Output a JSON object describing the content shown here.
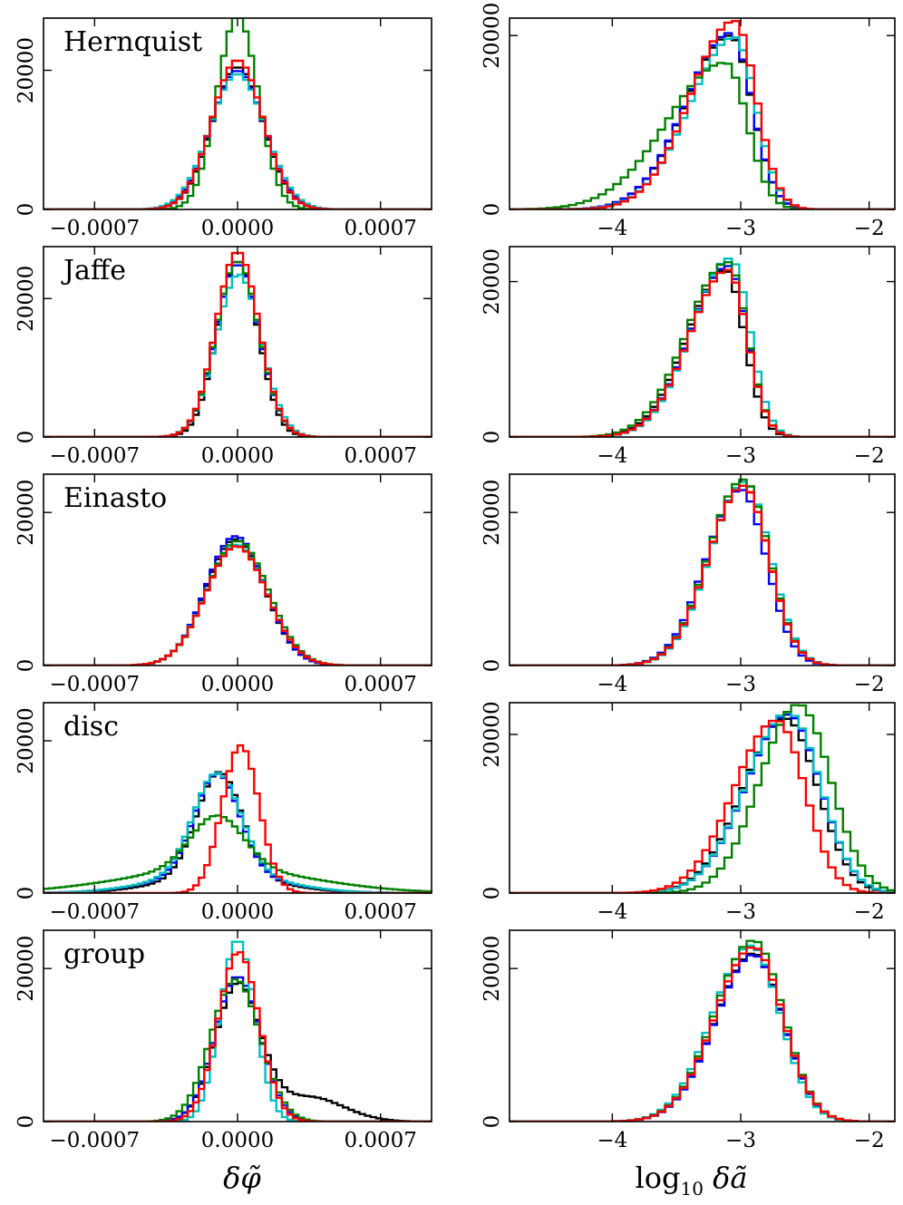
{
  "chart_data": {
    "type": "histogram-grid",
    "series": [
      {
        "name": "black",
        "color": "#000000"
      },
      {
        "name": "blue",
        "color": "#0000ff"
      },
      {
        "name": "cyan",
        "color": "#00bfbf"
      },
      {
        "name": "green",
        "color": "#008000"
      },
      {
        "name": "red",
        "color": "#ff0000"
      }
    ],
    "columns": [
      {
        "xlabel": "δφ̃",
        "xlim": [
          -0.00095,
          0.00095
        ],
        "xticks": [
          -0.0007,
          0.0,
          0.0007
        ],
        "xticklabels": [
          "−0.0007",
          "0.0000",
          "0.0007"
        ],
        "yticks": [
          0,
          20000
        ],
        "yticklabels": [
          "0",
          "20000"
        ]
      },
      {
        "xlabel": "log10 δã",
        "xlim": [
          -4.8,
          -1.8
        ],
        "xticks": [
          -4,
          -3,
          -2
        ],
        "xticklabels": [
          "−4",
          "−3",
          "−2"
        ],
        "yticks": [
          0,
          20000
        ],
        "yticklabels": [
          "0",
          "20000"
        ]
      }
    ],
    "rows": [
      {
        "label": "Hernquist",
        "phi": {
          "ymax": 27500,
          "curves": {
            "black": {
              "type": "sym",
              "center": 0.0,
              "width": 0.000125,
              "peak": 20500
            },
            "blue": {
              "type": "sym",
              "center": 0.0,
              "width": 0.00013,
              "peak": 20000
            },
            "cyan": {
              "type": "sym",
              "center": 0.0,
              "width": 0.000135,
              "peak": 19500
            },
            "green": {
              "type": "sym",
              "center": 0.0,
              "width": 0.0001,
              "peak": 27800
            },
            "red": {
              "type": "sym",
              "center": 0.0,
              "width": 0.000125,
              "peak": 21500
            }
          }
        },
        "acc": {
          "ymax": 22000,
          "curves": {
            "black": {
              "type": "skew",
              "center": -3.08,
              "left": 0.35,
              "right": 0.17,
              "peak": 20000
            },
            "blue": {
              "type": "skew",
              "center": -3.08,
              "left": 0.35,
              "right": 0.17,
              "peak": 20300
            },
            "cyan": {
              "type": "skew",
              "center": -3.05,
              "left": 0.35,
              "right": 0.17,
              "peak": 19800
            },
            "green": {
              "type": "skew",
              "center": -3.12,
              "left": 0.45,
              "right": 0.17,
              "peak": 16900
            },
            "red": {
              "type": "skew",
              "center": -3.05,
              "left": 0.34,
              "right": 0.17,
              "peak": 21700
            }
          }
        }
      },
      {
        "label": "Jaffe",
        "phi": {
          "ymax": 27500,
          "curves": {
            "black": {
              "type": "sym",
              "center": 0.0,
              "width": 0.0001,
              "peak": 25500
            },
            "blue": {
              "type": "sym",
              "center": 0.0,
              "width": 0.000105,
              "peak": 25000
            },
            "cyan": {
              "type": "sym",
              "center": 5e-06,
              "width": 0.00011,
              "peak": 23500
            },
            "green": {
              "type": "sym",
              "center": 0.0,
              "width": 0.000105,
              "peak": 25500
            },
            "red": {
              "type": "sym",
              "center": 0.0,
              "width": 0.000105,
              "peak": 26800
            }
          }
        },
        "acc": {
          "ymax": 24500,
          "curves": {
            "black": {
              "type": "skew",
              "center": -3.12,
              "left": 0.3,
              "right": 0.15,
              "peak": 21500
            },
            "blue": {
              "type": "skew",
              "center": -3.1,
              "left": 0.3,
              "right": 0.15,
              "peak": 22000
            },
            "cyan": {
              "type": "skew",
              "center": -3.08,
              "left": 0.3,
              "right": 0.15,
              "peak": 23000
            },
            "green": {
              "type": "skew",
              "center": -3.1,
              "left": 0.32,
              "right": 0.15,
              "peak": 22500
            },
            "red": {
              "type": "skew",
              "center": -3.1,
              "left": 0.3,
              "right": 0.15,
              "peak": 21500
            }
          }
        }
      },
      {
        "label": "Einasto",
        "phi": {
          "ymax": 25000,
          "curves": {
            "black": {
              "type": "sym",
              "center": -1e-05,
              "width": 0.000145,
              "peak": 16500
            },
            "blue": {
              "type": "sym",
              "center": -1e-05,
              "width": 0.000145,
              "peak": 16900
            },
            "cyan": {
              "type": "sym",
              "center": -5e-06,
              "width": 0.00015,
              "peak": 15800
            },
            "green": {
              "type": "sym",
              "center": 0.0,
              "width": 0.00015,
              "peak": 16300
            },
            "red": {
              "type": "sym",
              "center": -5e-06,
              "width": 0.00015,
              "peak": 15600
            }
          }
        },
        "acc": {
          "ymax": 25000,
          "curves": {
            "black": {
              "type": "skew",
              "center": -2.98,
              "left": 0.27,
              "right": 0.2,
              "peak": 23500
            },
            "blue": {
              "type": "skew",
              "center": -3.0,
              "left": 0.27,
              "right": 0.2,
              "peak": 23000
            },
            "cyan": {
              "type": "skew",
              "center": -2.97,
              "left": 0.27,
              "right": 0.2,
              "peak": 24000
            },
            "green": {
              "type": "skew",
              "center": -2.98,
              "left": 0.27,
              "right": 0.2,
              "peak": 24300
            },
            "red": {
              "type": "skew",
              "center": -2.98,
              "left": 0.27,
              "right": 0.2,
              "peak": 23500
            }
          }
        }
      },
      {
        "label": "disc",
        "phi": {
          "ymax": 25000,
          "curves": {
            "black": {
              "type": "disc",
              "center": -9e-05,
              "width": 0.00011,
              "peak": 13700,
              "tail": 2200,
              "tailwidth": 0.00028
            },
            "blue": {
              "type": "disc",
              "center": -0.0001,
              "width": 0.00011,
              "peak": 13200,
              "tail": 2500,
              "tailwidth": 0.0003
            },
            "cyan": {
              "type": "disc",
              "center": -0.0001,
              "width": 0.000115,
              "peak": 13200,
              "tail": 2600,
              "tailwidth": 0.0003
            },
            "green": {
              "type": "disc",
              "center": -0.0001,
              "width": 0.00013,
              "peak": 7000,
              "tail": 3200,
              "tailwidth": 0.00045
            },
            "red": {
              "type": "sym",
              "center": 1.5e-05,
              "width": 9e-05,
              "peak": 19400
            }
          }
        },
        "acc": {
          "ymax": 24000,
          "curves": {
            "black": {
              "type": "skew",
              "center": -2.65,
              "left": 0.33,
              "right": 0.25,
              "peak": 22000
            },
            "blue": {
              "type": "skew",
              "center": -2.63,
              "left": 0.33,
              "right": 0.25,
              "peak": 22500
            },
            "cyan": {
              "type": "skew",
              "center": -2.63,
              "left": 0.33,
              "right": 0.25,
              "peak": 22800
            },
            "green": {
              "type": "skew",
              "center": -2.55,
              "left": 0.3,
              "right": 0.25,
              "peak": 23800
            },
            "red": {
              "type": "skew",
              "center": -2.72,
              "left": 0.33,
              "right": 0.22,
              "peak": 21800
            }
          }
        }
      },
      {
        "label": "group",
        "phi": {
          "ymax": 25000,
          "curves": {
            "black": {
              "type": "group",
              "center": 0.0,
              "width": 0.00011,
              "peak": 17800,
              "tail": 3200,
              "tailcenter": 0.00035,
              "tailwidth": 0.00017
            },
            "blue": {
              "type": "sym",
              "center": 0.0,
              "width": 0.00011,
              "peak": 19000
            },
            "cyan": {
              "type": "sym",
              "center": 0.0,
              "width": 8.5e-05,
              "peak": 23800
            },
            "green": {
              "type": "sym",
              "center": -1e-05,
              "width": 0.00012,
              "peak": 18600
            },
            "red": {
              "type": "sym",
              "center": 5e-06,
              "width": 0.0001,
              "peak": 22200
            }
          }
        },
        "acc": {
          "ymax": 25000,
          "curves": {
            "black": {
              "type": "skew",
              "center": -2.9,
              "left": 0.3,
              "right": 0.23,
              "peak": 22000
            },
            "blue": {
              "type": "skew",
              "center": -2.9,
              "left": 0.3,
              "right": 0.23,
              "peak": 21800
            },
            "cyan": {
              "type": "skew",
              "center": -2.92,
              "left": 0.3,
              "right": 0.23,
              "peak": 23000
            },
            "green": {
              "type": "skew",
              "center": -2.9,
              "left": 0.3,
              "right": 0.23,
              "peak": 23700
            },
            "red": {
              "type": "skew",
              "center": -2.9,
              "left": 0.3,
              "right": 0.23,
              "peak": 22800
            }
          }
        }
      }
    ]
  }
}
